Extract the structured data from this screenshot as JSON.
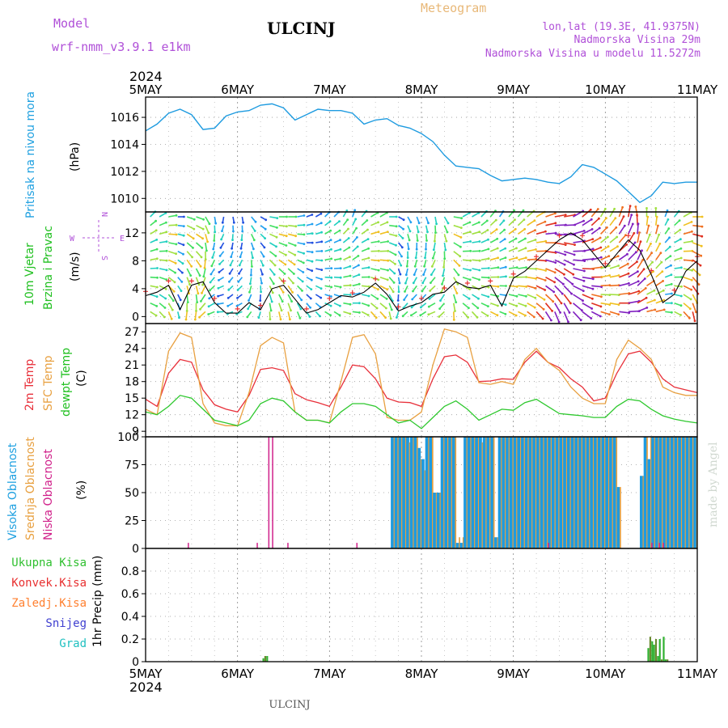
{
  "header": {
    "model_label": "Model",
    "model_name": "wrf-nmm_v3.9.1 e1km",
    "station": "ULCINJ",
    "product": "Meteogram",
    "lonlat": "lon,lat (19.3E, 41.9375N)",
    "elevation": "Nadmorska Visina 29m",
    "model_elevation": "Nadmorska Visina u modelu 11.5272m"
  },
  "footer": {
    "station": "ULCINJ",
    "credit": "made by Angel"
  },
  "time_axis": {
    "year": "2024",
    "labels": [
      "5MAY",
      "6MAY",
      "7MAY",
      "8MAY",
      "9MAY",
      "10MAY",
      "11MAY"
    ]
  },
  "compass": {
    "n": "N",
    "s": "S",
    "w": "W",
    "e": "E"
  },
  "colors": {
    "pressure": "#1e9be0",
    "t2m": "#e8303a",
    "sfc": "#e8a040",
    "dewpt": "#2ec82e",
    "high_cloud": "#1e9be0",
    "mid_cloud": "#e8a040",
    "low_cloud": "#d0208a",
    "total_precip": "#30b030",
    "conv_precip": "#e83030",
    "frozen_precip": "#ff8030",
    "snow": "#4040d0",
    "hail": "#20c0c0"
  },
  "chart_data": [
    {
      "type": "line",
      "panel": "pressure",
      "ylabel_left": "Pritisak na nivou mora",
      "ylabel_unit": "(hPa)",
      "ylim": [
        1009,
        1017.5
      ],
      "yticks": [
        "1010",
        "1012",
        "1014",
        "1016"
      ],
      "grid": true,
      "x_hours": [
        0,
        3,
        6,
        9,
        12,
        15,
        18,
        21,
        24,
        27,
        30,
        33,
        36,
        39,
        42,
        45,
        48,
        51,
        54,
        57,
        60,
        63,
        66,
        69,
        72,
        75,
        78,
        81,
        84,
        87,
        90,
        93,
        96,
        99,
        102,
        105,
        108,
        111,
        114,
        117,
        120,
        123,
        126,
        129,
        132,
        135,
        138,
        141,
        144
      ],
      "values": [
        1015,
        1015.5,
        1016.3,
        1016.6,
        1016.2,
        1015.1,
        1015.2,
        1016.1,
        1016.4,
        1016.5,
        1016.9,
        1017,
        1016.7,
        1015.8,
        1016.2,
        1016.6,
        1016.5,
        1016.5,
        1016.3,
        1015.5,
        1015.8,
        1015.9,
        1015.4,
        1015.2,
        1014.8,
        1014.2,
        1013.2,
        1012.4,
        1012.3,
        1012.2,
        1011.7,
        1011.3,
        1011.4,
        1011.5,
        1011.4,
        1011.2,
        1011.1,
        1011.6,
        1012.5,
        1012.3,
        1011.8,
        1011.3,
        1010.5,
        1009.7,
        1010.2,
        1011.2,
        1011.1,
        1011.2,
        1011.2
      ]
    },
    {
      "type": "line",
      "panel": "wind",
      "ylabel_left": "10m Vjetar",
      "ylabel_left2": "Brzina i Pravac",
      "ylabel_unit": "(m/s)",
      "ylim": [
        -1,
        15
      ],
      "yticks": [
        "0",
        "4",
        "8",
        "12"
      ],
      "grid": true,
      "x_hours": [
        0,
        3,
        6,
        9,
        12,
        15,
        18,
        21,
        24,
        27,
        30,
        33,
        36,
        39,
        42,
        45,
        48,
        51,
        54,
        57,
        60,
        63,
        66,
        69,
        72,
        75,
        78,
        81,
        84,
        87,
        90,
        93,
        96,
        99,
        102,
        105,
        108,
        111,
        114,
        117,
        120,
        123,
        126,
        129,
        132,
        135,
        138,
        141,
        144
      ],
      "values": [
        3,
        3.5,
        4.5,
        1,
        4.5,
        5,
        2,
        0.5,
        0.5,
        2,
        1,
        4,
        4.5,
        2.5,
        0.5,
        1,
        2,
        3,
        2.8,
        3.5,
        4.8,
        3.2,
        0.8,
        1.5,
        2,
        3.2,
        3.5,
        5,
        4.2,
        4,
        4.5,
        1.5,
        5.5,
        6.5,
        8,
        9.5,
        11,
        12,
        11,
        9,
        7,
        9,
        11,
        9.5,
        6,
        2,
        3.2,
        6.5,
        8
      ],
      "directions_deg": [
        45,
        60,
        80,
        90,
        110,
        150,
        170,
        190,
        170,
        140,
        120,
        100,
        90,
        80,
        70,
        60,
        45,
        30,
        20,
        40,
        60,
        90,
        120,
        150,
        160,
        170,
        150,
        100,
        60,
        45,
        40,
        35,
        40,
        50,
        60,
        70,
        80,
        60,
        50,
        40,
        30,
        20,
        10,
        350,
        0,
        20,
        40,
        60,
        90
      ]
    },
    {
      "type": "line",
      "panel": "temperature",
      "ylabel_left": "2m Temp",
      "ylabel_left2": "SFC Temp",
      "ylabel_left3": "dewpt Temp",
      "ylabel_unit": "(C)",
      "ylim": [
        8,
        28.5
      ],
      "yticks": [
        "9",
        "12",
        "15",
        "18",
        "21",
        "24",
        "27"
      ],
      "grid": true,
      "x_hours": [
        0,
        3,
        6,
        9,
        12,
        15,
        18,
        21,
        24,
        27,
        30,
        33,
        36,
        39,
        42,
        45,
        48,
        51,
        54,
        57,
        60,
        63,
        66,
        69,
        72,
        75,
        78,
        81,
        84,
        87,
        90,
        93,
        96,
        99,
        102,
        105,
        108,
        111,
        114,
        117,
        120,
        123,
        126,
        129,
        132,
        135,
        138,
        141,
        144
      ],
      "series": [
        {
          "name": "2m Temp",
          "color": "#e8303a",
          "values": [
            14.8,
            13.5,
            19.5,
            22,
            21.5,
            16.5,
            13.8,
            13,
            12.5,
            15.5,
            20.2,
            20.5,
            20,
            15.8,
            14.7,
            14.2,
            13.5,
            17,
            21,
            20.7,
            18.5,
            15,
            14.3,
            14.2,
            13.5,
            18.5,
            22.5,
            22.8,
            21.5,
            18,
            18.1,
            18.5,
            18.4,
            21.5,
            23.5,
            21.5,
            20.5,
            18.5,
            17,
            14.5,
            15,
            19.5,
            23,
            23.5,
            21.5,
            18.5,
            17,
            16.5,
            16
          ]
        },
        {
          "name": "SFC Temp",
          "color": "#e8a040",
          "values": [
            13,
            12,
            23.5,
            26.8,
            26,
            14,
            10.5,
            10,
            10,
            16,
            24.5,
            26,
            25,
            12.5,
            11,
            11,
            10.5,
            18,
            26,
            26.5,
            23,
            11.5,
            11,
            11,
            12.5,
            21,
            27.5,
            27,
            26,
            17.8,
            17.5,
            18,
            17.5,
            22,
            24,
            21.5,
            20,
            17,
            15,
            14,
            14,
            22,
            25.5,
            24,
            22,
            17,
            16,
            15.5,
            15.5
          ]
        },
        {
          "name": "dewpt Temp",
          "color": "#2ec82e",
          "values": [
            12.5,
            12,
            13.5,
            15.5,
            15,
            13,
            11,
            10.5,
            10,
            11,
            14,
            15,
            14.5,
            12.5,
            11,
            11,
            10.5,
            12.5,
            14,
            14,
            13.5,
            12,
            10.5,
            11,
            9.5,
            11.5,
            13.5,
            14.5,
            13,
            11,
            12,
            13,
            12.8,
            14.2,
            14.8,
            13.5,
            12.2,
            12,
            11.8,
            11.5,
            11.5,
            13.5,
            14.8,
            14.5,
            13,
            11.8,
            11.2,
            10.8,
            10.5
          ]
        }
      ]
    },
    {
      "type": "bar",
      "panel": "cloud",
      "ylabel_left": "Visoka Oblacnost",
      "ylabel_left2": "Srednja Oblacnost",
      "ylabel_left3": "Niska Oblacnost",
      "ylabel_unit": "(%)",
      "ylim": [
        0,
        100
      ],
      "yticks": [
        "0",
        "25",
        "50",
        "75",
        "100"
      ],
      "grid": true,
      "high_bars_hours": [
        64,
        65,
        66,
        67,
        68,
        69,
        70,
        71,
        72,
        73,
        74,
        75,
        76,
        77,
        78,
        79,
        80,
        81,
        82,
        83,
        84,
        85,
        86,
        87,
        88,
        89,
        90,
        91,
        92,
        93,
        94,
        95,
        96,
        97,
        98,
        99,
        100,
        101,
        102,
        103,
        104,
        105,
        106,
        107,
        108,
        109,
        110,
        111,
        112,
        113,
        114,
        115,
        116,
        117,
        118,
        119,
        120,
        121,
        122,
        123,
        124,
        125,
        126,
        127,
        128,
        129,
        130,
        131,
        132,
        133,
        134,
        135,
        136,
        137,
        138,
        139,
        140,
        141,
        142,
        143
      ],
      "high_bars_values": [
        100,
        100,
        100,
        100,
        100,
        100,
        100,
        90,
        80,
        100,
        100,
        50,
        50,
        100,
        100,
        100,
        100,
        5,
        5,
        100,
        100,
        100,
        100,
        100,
        100,
        100,
        100,
        10,
        100,
        100,
        100,
        100,
        100,
        100,
        100,
        100,
        100,
        100,
        100,
        100,
        100,
        100,
        100,
        100,
        100,
        100,
        100,
        100,
        100,
        100,
        100,
        100,
        100,
        100,
        100,
        100,
        100,
        100,
        100,
        55,
        0,
        0,
        0,
        0,
        0,
        65,
        100,
        80,
        100,
        100,
        100,
        100,
        100,
        100,
        100,
        100,
        100,
        100,
        100,
        100
      ],
      "mid_bars_values": [
        100,
        100,
        100,
        100,
        95,
        100,
        100,
        80,
        70,
        100,
        100,
        50,
        50,
        100,
        100,
        100,
        100,
        10,
        10,
        100,
        100,
        100,
        100,
        95,
        100,
        100,
        100,
        10,
        100,
        100,
        100,
        100,
        100,
        100,
        100,
        100,
        100,
        100,
        100,
        100,
        100,
        100,
        100,
        100,
        100,
        100,
        100,
        100,
        100,
        100,
        100,
        100,
        100,
        100,
        100,
        100,
        100,
        100,
        100,
        55,
        0,
        0,
        0,
        0,
        0,
        65,
        100,
        100,
        100,
        100,
        100,
        100,
        100,
        100,
        100,
        100,
        100,
        100,
        100,
        100
      ],
      "low_bars_hours": [
        11,
        29,
        32,
        33,
        37,
        55,
        105,
        132,
        134,
        135
      ],
      "low_bars_values": [
        5,
        5,
        100,
        100,
        5,
        5,
        5,
        5,
        5,
        5
      ]
    },
    {
      "type": "bar",
      "panel": "precip",
      "legend": [
        "Ukupna Kisa",
        "Konvek.Kisa",
        "Zaledj.Kisa",
        "Snijeg",
        "Grad"
      ],
      "ylabel_unit": "1hr Precip (mm)",
      "ylim": [
        0,
        1
      ],
      "yticks": [
        "0",
        "0.2",
        "0.4",
        "0.6",
        "0.8"
      ],
      "grid": true,
      "bars_hours": [
        30.5,
        31,
        31.5,
        131,
        131.5,
        132,
        132.5,
        133,
        133.5,
        134,
        134.5,
        135,
        135.5,
        136
      ],
      "bars_values": [
        0.03,
        0.05,
        0.05,
        0.12,
        0.22,
        0.18,
        0.15,
        0.2,
        0.05,
        0.2,
        0.02,
        0.22,
        0.02,
        0.02
      ]
    }
  ]
}
